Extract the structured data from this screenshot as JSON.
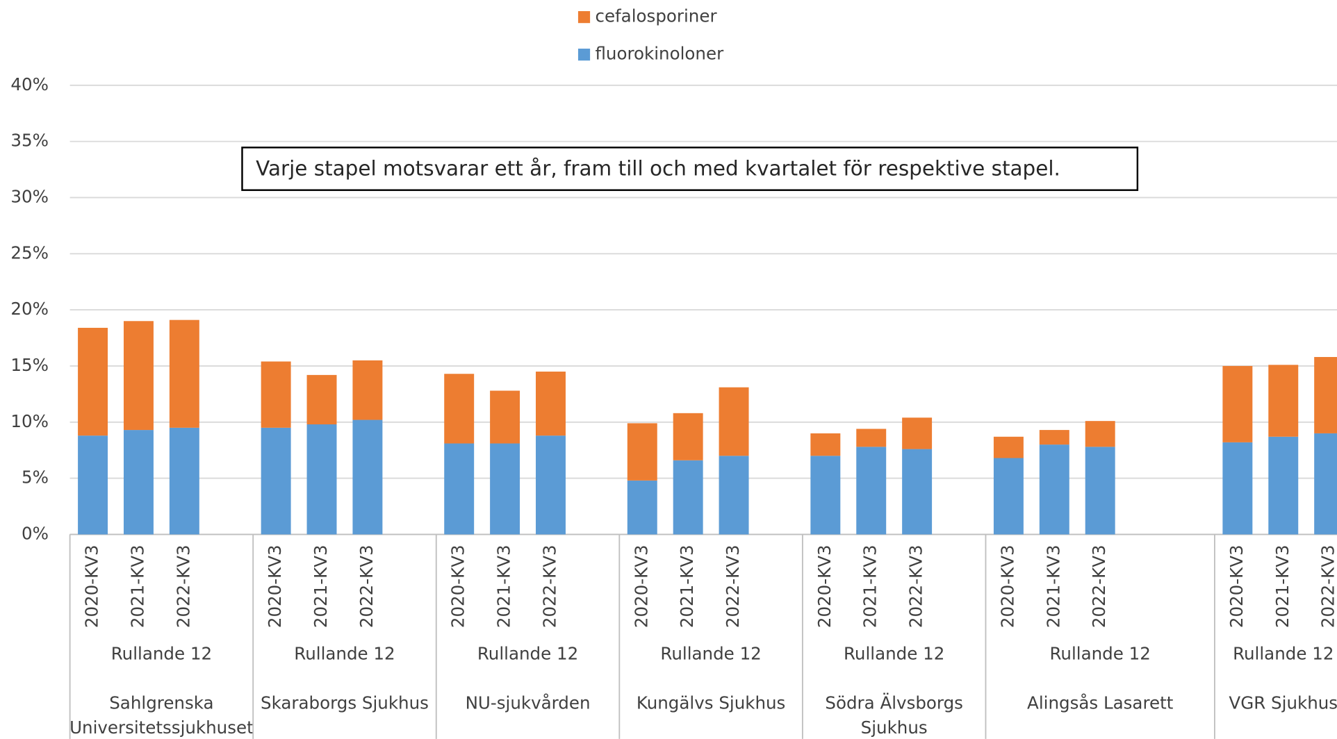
{
  "chart_data": {
    "type": "stacked_bar",
    "annotation": "Varje stapel motsvarar ett år, fram till och med kvartalet för respektive stapel.",
    "groups": [
      {
        "period": "Rullande 12",
        "name": [
          "Sahlgrenska",
          "Universitetssjukhuset"
        ],
        "categories": [
          "2020-KV3",
          "2021-KV3",
          "2022-KV3",
          null
        ]
      },
      {
        "period": "Rullande 12",
        "name": [
          "Skaraborgs Sjukhus"
        ],
        "categories": [
          "2020-KV3",
          "2021-KV3",
          "2022-KV3",
          null
        ]
      },
      {
        "period": "Rullande 12",
        "name": [
          "NU-sjukvården"
        ],
        "categories": [
          "2020-KV3",
          "2021-KV3",
          "2022-KV3",
          null
        ]
      },
      {
        "period": "Rullande 12",
        "name": [
          "Kungälvs Sjukhus"
        ],
        "categories": [
          "2020-KV3",
          "2021-KV3",
          "2022-KV3",
          null
        ]
      },
      {
        "period": "Rullande 12",
        "name": [
          "Södra Älvsborgs",
          "Sjukhus"
        ],
        "categories": [
          "2020-KV3",
          "2021-KV3",
          "2022-KV3",
          null
        ]
      },
      {
        "period": "Rullande 12",
        "name": [
          "Alingsås Lasarett"
        ],
        "categories": [
          "2020-KV3",
          "2021-KV3",
          "2022-KV3",
          null,
          null
        ]
      },
      {
        "period": "Rullande 12",
        "name": [
          "VGR Sjukhus"
        ],
        "categories": [
          "2020-KV3",
          "2021-KV3",
          "2022-KV3"
        ]
      }
    ],
    "series": [
      {
        "name": "fluorokinoloner",
        "color": "#5b9bd5",
        "values": [
          8.8,
          9.3,
          9.5,
          null,
          9.5,
          9.8,
          10.2,
          null,
          8.1,
          8.1,
          8.8,
          null,
          4.8,
          6.6,
          7.0,
          null,
          7.0,
          7.8,
          7.6,
          null,
          6.8,
          8.0,
          7.8,
          null,
          null,
          8.2,
          8.7,
          9.0
        ]
      },
      {
        "name": "cefalosporiner",
        "color": "#ed7d31",
        "values": [
          9.6,
          9.7,
          9.6,
          null,
          5.9,
          4.4,
          5.3,
          null,
          6.2,
          4.7,
          5.7,
          null,
          5.1,
          4.2,
          6.1,
          null,
          2.0,
          1.6,
          2.8,
          null,
          1.9,
          1.3,
          2.3,
          null,
          null,
          6.8,
          6.4,
          6.8
        ]
      }
    ],
    "ylim": [
      0,
      40
    ],
    "yticks": [
      {
        "value": 0,
        "label": "0%"
      },
      {
        "value": 5,
        "label": "5%"
      },
      {
        "value": 10,
        "label": "10%"
      },
      {
        "value": 15,
        "label": "15%"
      },
      {
        "value": 20,
        "label": "20%"
      },
      {
        "value": 25,
        "label": "25%"
      },
      {
        "value": 30,
        "label": "30%"
      },
      {
        "value": 35,
        "label": "35%"
      },
      {
        "value": 40,
        "label": "40%"
      }
    ],
    "grid": true
  }
}
